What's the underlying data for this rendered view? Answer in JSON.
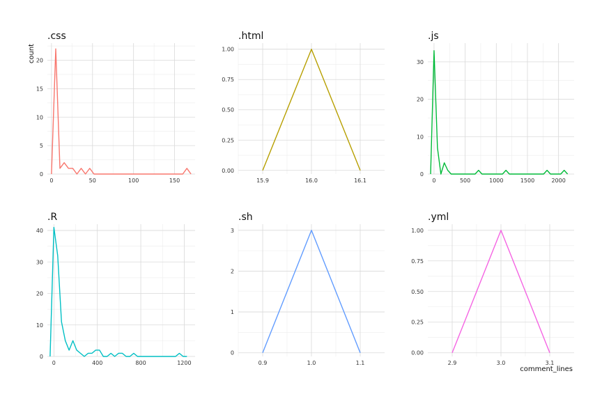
{
  "chart_data": {
    "type": "line",
    "xlabel": "comment_lines",
    "ylabel": "count",
    "grid": true,
    "facets": [
      {
        "title": ".css",
        "color": "#F8766D",
        "xlim": [
          -5,
          175
        ],
        "ylim": [
          0,
          23
        ],
        "xticks": [
          0,
          50,
          100,
          150
        ],
        "xtick_labels": [
          "0",
          "50",
          "100",
          "150"
        ],
        "yticks": [
          0,
          5,
          10,
          15,
          20
        ],
        "ytick_labels": [
          "0",
          "5",
          "10",
          "15",
          "20"
        ],
        "x": [
          0,
          5.2,
          10.3,
          15.5,
          20.7,
          25.9,
          31.0,
          36.2,
          41.4,
          46.6,
          51.8,
          57,
          160,
          165,
          170
        ],
        "y": [
          0,
          22,
          1,
          2,
          1,
          1,
          0,
          1,
          0,
          1,
          0,
          0,
          0,
          1,
          0
        ]
      },
      {
        "title": ".html",
        "color": "#B79F00",
        "xlim": [
          15.85,
          16.15
        ],
        "ylim": [
          -0.03,
          1.05
        ],
        "xticks": [
          15.9,
          16.0,
          16.1
        ],
        "xtick_labels": [
          "15.9",
          "16.0",
          "16.1"
        ],
        "yticks": [
          0,
          0.25,
          0.5,
          0.75,
          1.0
        ],
        "ytick_labels": [
          "0.00",
          "0.25",
          "0.50",
          "0.75",
          "1.00"
        ],
        "x": [
          15.9,
          16.0,
          16.1
        ],
        "y": [
          0,
          1,
          0
        ]
      },
      {
        "title": ".js",
        "color": "#00BA38",
        "xlim": [
          -100,
          2250
        ],
        "ylim": [
          0,
          35
        ],
        "xticks": [
          0,
          500,
          1000,
          1500,
          2000
        ],
        "xtick_labels": [
          "0",
          "500",
          "1000",
          "1500",
          "2000"
        ],
        "yticks": [
          0,
          10,
          20,
          30
        ],
        "ytick_labels": [
          "0",
          "10",
          "20",
          "30"
        ],
        "x": [
          -55,
          0,
          55,
          110,
          165,
          220,
          275,
          330,
          385,
          440,
          495,
          550,
          605,
          660,
          715,
          770,
          825,
          880,
          935,
          990,
          1045,
          1100,
          1155,
          1210,
          1265,
          1320,
          1375,
          1430,
          1485,
          1540,
          1595,
          1650,
          1705,
          1760,
          1815,
          1870,
          1925,
          1980,
          2035,
          2090,
          2145
        ],
        "y": [
          0,
          33,
          7,
          0,
          3,
          1,
          0,
          0,
          0,
          0,
          0,
          0,
          0,
          0,
          1,
          0,
          0,
          0,
          0,
          0,
          0,
          0,
          1,
          0,
          0,
          0,
          0,
          0,
          0,
          0,
          0,
          0,
          0,
          0,
          1,
          0,
          0,
          0,
          0,
          1,
          0
        ]
      },
      {
        "title": ".R",
        "color": "#00BFC4",
        "xlim": [
          -60,
          1300
        ],
        "ylim": [
          0,
          42
        ],
        "xticks": [
          0,
          400,
          800,
          1200
        ],
        "xtick_labels": [
          "0",
          "400",
          "800",
          "1200"
        ],
        "yticks": [
          0,
          10,
          20,
          30,
          40
        ],
        "ytick_labels": [
          "0",
          "10",
          "20",
          "30",
          "40"
        ],
        "x": [
          -35,
          0,
          35,
          70,
          105,
          140,
          175,
          210,
          245,
          280,
          315,
          350,
          385,
          420,
          455,
          490,
          525,
          560,
          595,
          630,
          665,
          700,
          735,
          770,
          805,
          840,
          875,
          910,
          945,
          980,
          1015,
          1050,
          1085,
          1120,
          1155,
          1190,
          1225
        ],
        "y": [
          0,
          41,
          32,
          11,
          5,
          2,
          5,
          2,
          1,
          0,
          1,
          1,
          2,
          2,
          0,
          0,
          1,
          0,
          1,
          1,
          0,
          0,
          1,
          0,
          0,
          0,
          0,
          0,
          0,
          0,
          0,
          0,
          0,
          0,
          1,
          0,
          0
        ]
      },
      {
        "title": ".sh",
        "color": "#619CFF",
        "xlim": [
          0.85,
          1.15
        ],
        "ylim": [
          -0.09,
          3.15
        ],
        "xticks": [
          0.9,
          1.0,
          1.1
        ],
        "xtick_labels": [
          "0.9",
          "1.0",
          "1.1"
        ],
        "yticks": [
          0,
          1,
          2,
          3
        ],
        "ytick_labels": [
          "0",
          "1",
          "2",
          "3"
        ],
        "x": [
          0.9,
          1.0,
          1.1
        ],
        "y": [
          0,
          3,
          0
        ]
      },
      {
        "title": ".yml",
        "color": "#F564E3",
        "xlim": [
          2.85,
          3.15
        ],
        "ylim": [
          -0.03,
          1.05
        ],
        "xticks": [
          2.9,
          3.0,
          3.1
        ],
        "xtick_labels": [
          "2.9",
          "3.0",
          "3.1"
        ],
        "yticks": [
          0,
          0.25,
          0.5,
          0.75,
          1.0
        ],
        "ytick_labels": [
          "0.00",
          "0.25",
          "0.50",
          "0.75",
          "1.00"
        ],
        "x": [
          2.9,
          3.0,
          3.1
        ],
        "y": [
          0,
          1,
          0
        ]
      }
    ]
  }
}
